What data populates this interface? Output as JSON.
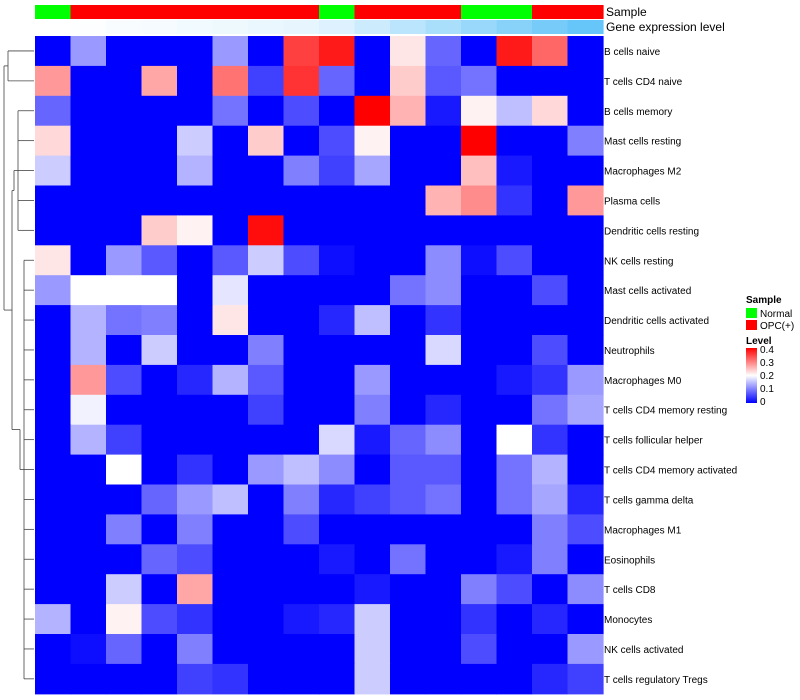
{
  "chart_data": {
    "type": "heatmap",
    "title": "",
    "annotations": {
      "sample_label": "Sample",
      "gene_label": "Gene expression level",
      "sample_groups": [
        "N",
        "O",
        "O",
        "O",
        "O",
        "O",
        "O",
        "O",
        "N",
        "O",
        "O",
        "O",
        "N",
        "N",
        "O",
        "O"
      ],
      "gene_levels": [
        0.0,
        0.02,
        0.04,
        0.06,
        0.08,
        0.1,
        0.12,
        0.14,
        0.2,
        0.3,
        0.4,
        0.5,
        0.6,
        0.7,
        0.8,
        0.9
      ]
    },
    "legend": {
      "sample_title": "Sample",
      "sample_items": [
        {
          "key": "N",
          "label": "Normal",
          "color": "#00ff00"
        },
        {
          "key": "O",
          "label": "OPC(+)",
          "color": "#ff0000"
        }
      ],
      "level_title": "Level",
      "level_ticks": [
        "0.4",
        "0.3",
        "0.2",
        "0.1",
        "0"
      ],
      "level_range": [
        0,
        0.4
      ]
    },
    "rows": [
      "B cells naive",
      "T cells CD4 naive",
      "B cells memory",
      "Mast cells resting",
      "Macrophages M2",
      "Plasma cells",
      "Dendritic cells resting",
      "NK cells resting",
      "Mast cells activated",
      "Dendritic cells activated",
      "Neutrophils",
      "Macrophages M0",
      "T cells CD4 memory resting",
      "T cells follicular helper",
      "T cells CD4 memory activated",
      "T cells gamma delta",
      "Macrophages M1",
      "Eosinophils",
      "T cells CD8",
      "Monocytes",
      "NK cells activated",
      "T cells regulatory  Tregs"
    ],
    "values": [
      [
        0,
        0.12,
        0,
        0,
        0,
        0.12,
        0,
        0.35,
        0.38,
        0,
        0.22,
        0.08,
        0,
        0.38,
        0.32,
        0
      ],
      [
        0.28,
        0,
        0,
        0.27,
        0,
        0.31,
        0.05,
        0.36,
        0.08,
        0,
        0.24,
        0.07,
        0.09,
        0,
        0,
        0
      ],
      [
        0.08,
        0,
        0,
        0,
        0,
        0.09,
        0,
        0.06,
        0,
        0.4,
        0.26,
        0.02,
        0.21,
        0.15,
        0.23,
        0
      ],
      [
        0.23,
        0,
        0,
        0,
        0.16,
        0,
        0.24,
        0,
        0.06,
        0.21,
        0,
        0,
        0.4,
        0,
        0,
        0.1
      ],
      [
        0.16,
        0,
        0,
        0,
        0.14,
        0,
        0,
        0.1,
        0.05,
        0.13,
        0,
        0,
        0.25,
        0.02,
        0,
        0
      ],
      [
        0,
        0,
        0,
        0,
        0,
        0,
        0,
        0,
        0,
        0,
        0,
        0.26,
        0.29,
        0.04,
        0,
        0.28
      ],
      [
        0,
        0,
        0,
        0.24,
        0.21,
        0,
        0.39,
        0,
        0,
        0,
        0,
        0,
        0,
        0,
        0,
        0
      ],
      [
        0.22,
        0,
        0.12,
        0.07,
        0,
        0.07,
        0.16,
        0.06,
        0.01,
        0,
        0,
        0.11,
        0.01,
        0.06,
        0,
        0
      ],
      [
        0.12,
        0.2,
        0.2,
        0.2,
        0,
        0.18,
        0,
        0,
        0,
        0,
        0.09,
        0.11,
        0,
        0,
        0.06,
        0
      ],
      [
        0,
        0.14,
        0.09,
        0.1,
        0,
        0.22,
        0,
        0,
        0.03,
        0.15,
        0,
        0.04,
        0,
        0,
        0,
        0
      ],
      [
        0,
        0.14,
        0,
        0.16,
        0,
        0,
        0.1,
        0,
        0,
        0,
        0,
        0.17,
        0,
        0,
        0.06,
        0
      ],
      [
        0,
        0.28,
        0.06,
        0,
        0.03,
        0.14,
        0.07,
        0,
        0,
        0.12,
        0,
        0,
        0,
        0.02,
        0.04,
        0.12
      ],
      [
        0,
        0.19,
        0,
        0,
        0,
        0,
        0.05,
        0,
        0,
        0.1,
        0,
        0.03,
        0,
        0,
        0.09,
        0.13
      ],
      [
        0,
        0.14,
        0.05,
        0,
        0,
        0,
        0,
        0,
        0.17,
        0.02,
        0.08,
        0.11,
        0,
        0.2,
        0.04,
        0
      ],
      [
        0,
        0,
        0.2,
        0,
        0.04,
        0,
        0.12,
        0.15,
        0.11,
        0,
        0.07,
        0.07,
        0,
        0.09,
        0.14,
        0
      ],
      [
        0,
        0,
        0,
        0.08,
        0.12,
        0.15,
        0,
        0.1,
        0.03,
        0.05,
        0.07,
        0.09,
        0,
        0.09,
        0.13,
        0.03
      ],
      [
        0,
        0,
        0.1,
        0,
        0.1,
        0,
        0,
        0.06,
        0,
        0,
        0,
        0,
        0,
        0,
        0.1,
        0.06
      ],
      [
        0,
        0,
        0,
        0.08,
        0.06,
        0,
        0,
        0,
        0.02,
        0,
        0.09,
        0,
        0,
        0.02,
        0.1,
        0
      ],
      [
        0,
        0,
        0.16,
        0,
        0.27,
        0,
        0,
        0,
        0,
        0.02,
        0,
        0,
        0.1,
        0.06,
        0,
        0.11
      ],
      [
        0.14,
        0,
        0.21,
        0.06,
        0.04,
        0,
        0,
        0.02,
        0.03,
        0.16,
        0,
        0,
        0.04,
        0,
        0.03,
        0
      ],
      [
        0,
        0.01,
        0.08,
        0,
        0.1,
        0,
        0,
        0,
        0,
        0.16,
        0,
        0,
        0.06,
        0,
        0,
        0.12
      ],
      [
        0,
        0,
        0,
        0,
        0.05,
        0.04,
        0,
        0,
        0,
        0.16,
        0,
        0,
        0,
        0,
        0.03,
        0.05
      ]
    ]
  }
}
